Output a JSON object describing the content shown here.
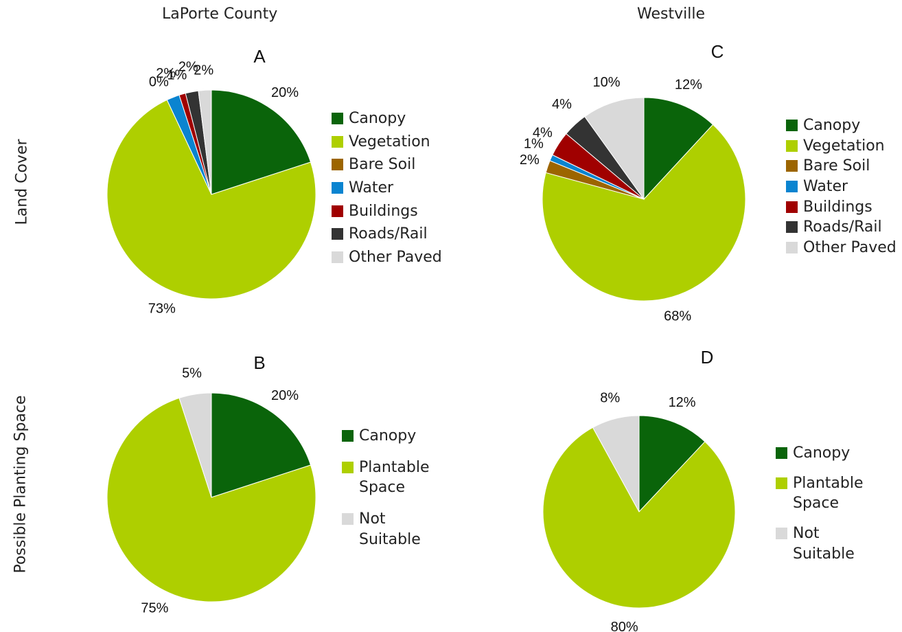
{
  "column_titles": [
    "LaPorte County",
    "Westville"
  ],
  "row_titles": [
    "Land Cover",
    "Possible Planting Space"
  ],
  "chart_data": [
    {
      "type": "pie",
      "title": "A",
      "categories": [
        "Canopy",
        "Vegetation",
        "Bare Soil",
        "Water",
        "Buildings",
        "Roads/Rail",
        "Other Paved"
      ],
      "values": [
        20,
        73,
        0,
        2,
        1,
        2,
        2
      ],
      "value_labels": [
        "20%",
        "73%",
        "0%",
        "2%",
        "1%",
        "2%",
        "2%"
      ],
      "colors": [
        "#0a640a",
        "#aecf00",
        "#9c6500",
        "#0a84d0",
        "#a00000",
        "#333333",
        "#d9d9d9"
      ]
    },
    {
      "type": "pie",
      "title": "B",
      "categories": [
        "Canopy",
        "Plantable Space",
        "Not Suitable"
      ],
      "values": [
        20,
        75,
        5
      ],
      "value_labels": [
        "20%",
        "75%",
        "5%"
      ],
      "colors": [
        "#0a640a",
        "#aecf00",
        "#d9d9d9"
      ]
    },
    {
      "type": "pie",
      "title": "C",
      "categories": [
        "Canopy",
        "Vegetation",
        "Bare Soil",
        "Water",
        "Buildings",
        "Roads/Rail",
        "Other Paved"
      ],
      "values": [
        12,
        68,
        2,
        1,
        4,
        4,
        10
      ],
      "value_labels": [
        "12%",
        "68%",
        "2%",
        "1%",
        "4%",
        "4%",
        "10%"
      ],
      "colors": [
        "#0a640a",
        "#aecf00",
        "#9c6500",
        "#0a84d0",
        "#a00000",
        "#333333",
        "#d9d9d9"
      ]
    },
    {
      "type": "pie",
      "title": "D",
      "categories": [
        "Canopy",
        "Plantable Space",
        "Not Suitable"
      ],
      "values": [
        12,
        80,
        8
      ],
      "value_labels": [
        "12%",
        "80%",
        "8%"
      ],
      "colors": [
        "#0a640a",
        "#aecf00",
        "#d9d9d9"
      ]
    }
  ]
}
